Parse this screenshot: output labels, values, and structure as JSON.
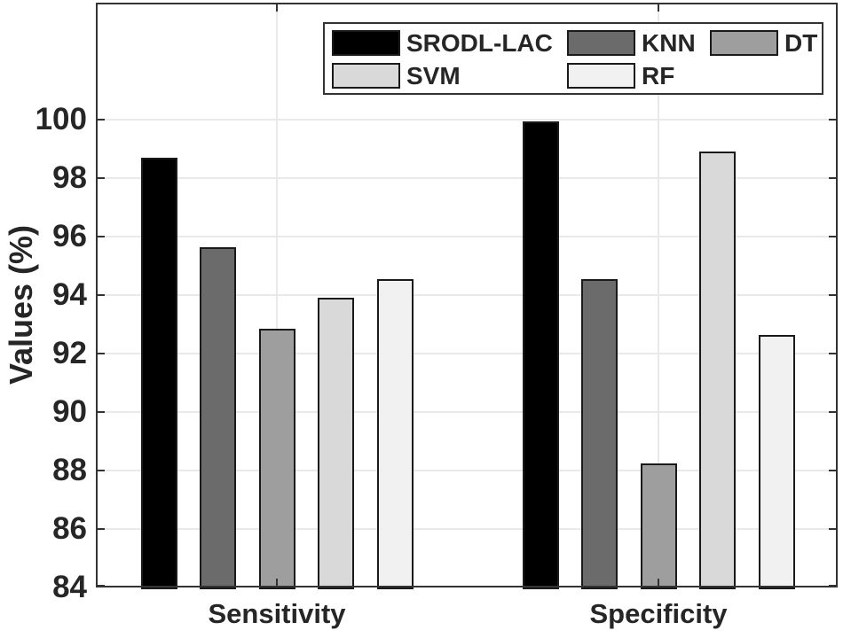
{
  "figure": {
    "background": "#ffffff",
    "axis_border_color": "#333333",
    "grid_color": "#e9e9e9",
    "text_color": "#262626",
    "bar_edge_color": "#1a1a1a",
    "legend_border_color": "#333333"
  },
  "chart_data": {
    "type": "bar",
    "title": "",
    "xlabel": "",
    "ylabel": "Values (%)",
    "categories": [
      "Sensitivity",
      "Specificity"
    ],
    "series": [
      {
        "name": "SRODL-LAC",
        "color": "#000000",
        "values": [
          98.7,
          99.95
        ]
      },
      {
        "name": "KNN",
        "color": "#6b6b6b",
        "values": [
          95.65,
          94.55
        ]
      },
      {
        "name": "DT",
        "color": "#9e9e9e",
        "values": [
          92.85,
          88.25
        ]
      },
      {
        "name": "SVM",
        "color": "#d9d9d9",
        "values": [
          93.9,
          98.9
        ]
      },
      {
        "name": "RF",
        "color": "#f1f1f1",
        "values": [
          94.55,
          92.65
        ]
      }
    ],
    "ylim": [
      84,
      104
    ],
    "yticks": [
      84,
      86,
      88,
      90,
      92,
      94,
      96,
      98,
      100
    ],
    "grid": true,
    "legend_position": "top-inside",
    "legend_rows": [
      [
        "SRODL-LAC",
        "KNN",
        "DT"
      ],
      [
        "SVM",
        "RF"
      ]
    ]
  }
}
